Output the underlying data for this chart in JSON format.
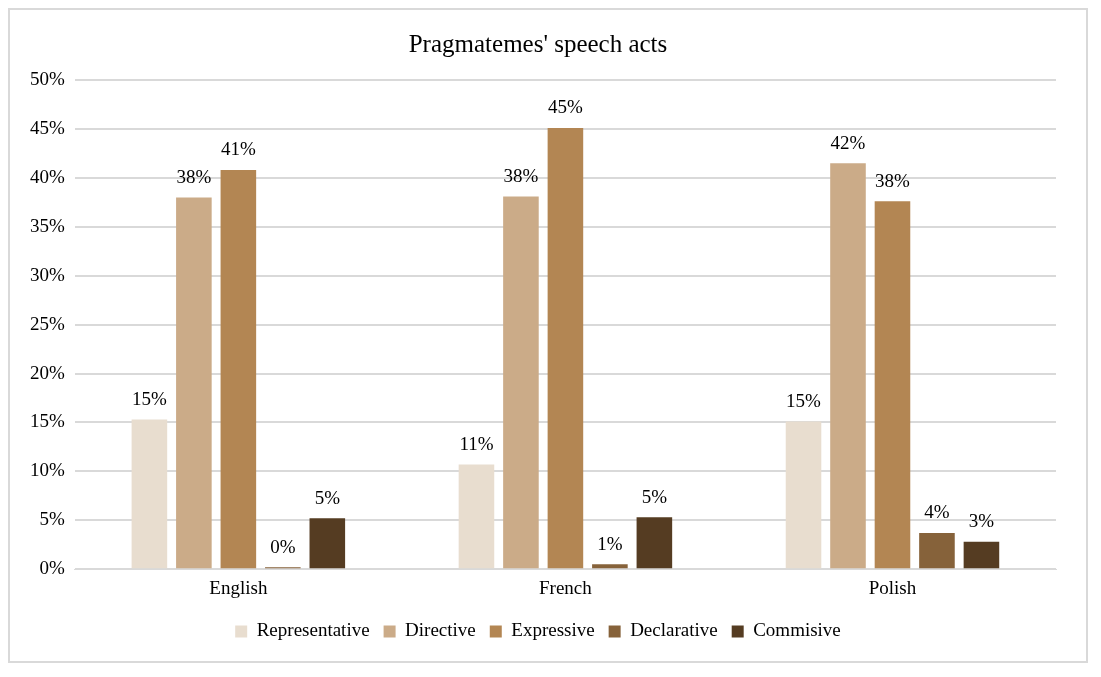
{
  "chart_data": {
    "type": "bar",
    "title": "Pragmatemes' speech acts",
    "categories": [
      "English",
      "French",
      "Polish"
    ],
    "series": [
      {
        "name": "Representative",
        "color": "#e8ddcf",
        "values": [
          15.3,
          10.7,
          15.1
        ],
        "value_labels": [
          "15%",
          "11%",
          "15%"
        ]
      },
      {
        "name": "Directive",
        "color": "#cbab88",
        "values": [
          38.0,
          38.1,
          41.5
        ],
        "value_labels": [
          "38%",
          "38%",
          "42%"
        ]
      },
      {
        "name": "Expressive",
        "color": "#b38653",
        "values": [
          40.8,
          45.1,
          37.6
        ],
        "value_labels": [
          "41%",
          "45%",
          "38%"
        ]
      },
      {
        "name": "Declarative",
        "color": "#86623a",
        "values": [
          0.2,
          0.5,
          3.7
        ],
        "value_labels": [
          "0%",
          "1%",
          "4%"
        ]
      },
      {
        "name": "Commisive",
        "color": "#553c22",
        "values": [
          5.2,
          5.3,
          2.8
        ],
        "value_labels": [
          "5%",
          "5%",
          "3%"
        ]
      }
    ],
    "ylim": [
      0,
      50
    ],
    "yticks": [
      {
        "value": 0,
        "label": "0%"
      },
      {
        "value": 5,
        "label": "5%"
      },
      {
        "value": 10,
        "label": "10%"
      },
      {
        "value": 15,
        "label": "15%"
      },
      {
        "value": 20,
        "label": "20%"
      },
      {
        "value": 25,
        "label": "25%"
      },
      {
        "value": 30,
        "label": "30%"
      },
      {
        "value": 35,
        "label": "35%"
      },
      {
        "value": 40,
        "label": "40%"
      },
      {
        "value": 45,
        "label": "45%"
      },
      {
        "value": 50,
        "label": "50%"
      }
    ],
    "grid": "y",
    "legend": "bottom"
  }
}
